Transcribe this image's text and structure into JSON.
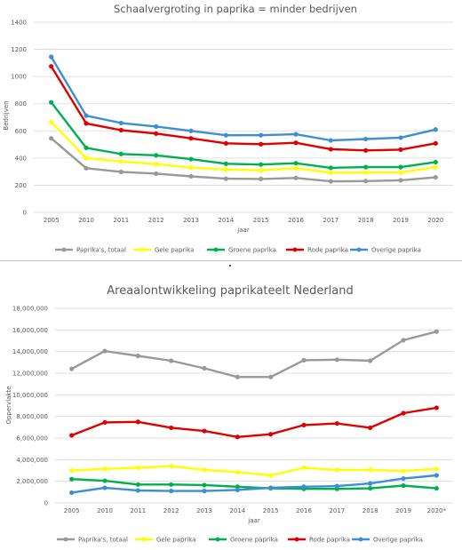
{
  "charts": [
    {
      "type": "line",
      "title": "Schaalvergroting in paprika = minder bedrijven",
      "xlabel": "jaar",
      "ylabel": "Bedrijven",
      "ylim": [
        0,
        1400
      ],
      "yticks": [
        "0",
        "200",
        "400",
        "600",
        "800",
        "1000",
        "1200",
        "1400"
      ],
      "categories": [
        "2005",
        "2010",
        "2011",
        "2012",
        "2013",
        "2014",
        "2015",
        "2016",
        "2017",
        "2018",
        "2019",
        "2020"
      ],
      "grid": true,
      "legend_position": "bottom",
      "series": [
        {
          "name": "Paprika's, totaal",
          "color": "#999999",
          "values": [
            545,
            325,
            298,
            285,
            265,
            248,
            246,
            253,
            228,
            230,
            236,
            258
          ]
        },
        {
          "name": "Gele paprika",
          "color": "#ffff00",
          "values": [
            665,
            400,
            375,
            355,
            330,
            315,
            310,
            325,
            292,
            293,
            293,
            333
          ]
        },
        {
          "name": "Groene paprika",
          "color": "#00b050",
          "values": [
            810,
            475,
            430,
            420,
            392,
            358,
            352,
            362,
            328,
            333,
            333,
            370
          ]
        },
        {
          "name": "Rode paprika",
          "color": "#e00000",
          "values": [
            1075,
            655,
            605,
            580,
            545,
            508,
            502,
            512,
            465,
            456,
            462,
            508
          ]
        },
        {
          "name": "Overige paprika",
          "color": "#3d8fd4",
          "values": [
            1145,
            712,
            658,
            632,
            600,
            568,
            568,
            575,
            530,
            540,
            550,
            610
          ]
        }
      ]
    },
    {
      "type": "line",
      "title": "Areaalontwikkeling paprikateelt Nederland",
      "xlabel": "jaar",
      "ylabel": "Oppervlakte",
      "ylim": [
        0,
        18000000
      ],
      "yticks": [
        "0",
        "2,000,000",
        "4,000,000",
        "6,000,000",
        "8,000,000",
        "10,000,000",
        "12,000,000",
        "14,000,000",
        "16,000,000",
        "18,000,000"
      ],
      "categories": [
        "2005",
        "2010",
        "2011",
        "2012",
        "2013",
        "2014",
        "2015",
        "2016",
        "2017",
        "2018",
        "2019",
        "2020*"
      ],
      "grid": true,
      "legend_position": "bottom",
      "series": [
        {
          "name": "Paprika's, totaal",
          "color": "#999999",
          "values": [
            12400000,
            14050000,
            13600000,
            13150000,
            12450000,
            11650000,
            11650000,
            13200000,
            13250000,
            13150000,
            15050000,
            15850000
          ]
        },
        {
          "name": "Gele paprika",
          "color": "#ffff00",
          "values": [
            3000000,
            3150000,
            3250000,
            3400000,
            3050000,
            2850000,
            2550000,
            3250000,
            3050000,
            3050000,
            2950000,
            3150000
          ]
        },
        {
          "name": "Groene paprika",
          "color": "#00b050",
          "values": [
            2200000,
            2050000,
            1700000,
            1700000,
            1650000,
            1500000,
            1350000,
            1300000,
            1300000,
            1350000,
            1600000,
            1350000
          ]
        },
        {
          "name": "Rode paprika",
          "color": "#e00000",
          "values": [
            6250000,
            7450000,
            7500000,
            6950000,
            6650000,
            6100000,
            6350000,
            7200000,
            7350000,
            6950000,
            8300000,
            8800000
          ]
        },
        {
          "name": "Overige paprika",
          "color": "#3d8fd4",
          "values": [
            950000,
            1400000,
            1150000,
            1100000,
            1100000,
            1200000,
            1400000,
            1500000,
            1550000,
            1800000,
            2250000,
            2550000
          ]
        }
      ]
    }
  ]
}
